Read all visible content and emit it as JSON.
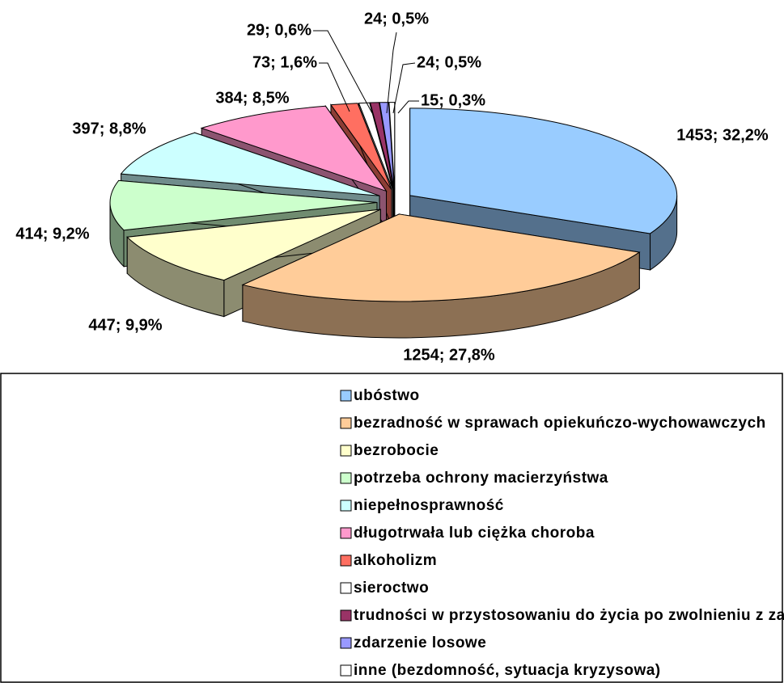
{
  "chart_data": {
    "type": "pie",
    "categories": [
      "ubóstwo",
      "bezradność w sprawach opiekuńczo-wychowawczych",
      "bezrobocie",
      "potrzeba ochrony macierzyństwa",
      "niepełnosprawność",
      "długotrwała lub ciężka choroba",
      "alkoholizm",
      "sieroctwo",
      "trudności w przystosowaniu do życia po zwolnieniu z zakładu karnego",
      "zdarzenie losowe",
      "inne (bezdomność, sytuacja kryzysowa)"
    ],
    "values": [
      1453,
      1254,
      447,
      414,
      397,
      384,
      73,
      29,
      24,
      24,
      15
    ],
    "value_labels": [
      "1453; 32,2%",
      "1254; 27,8%",
      "447; 9,9%",
      "414; 9,2%",
      "397; 8,8%",
      "384; 8,5%",
      "73; 1,6%",
      "29; 0,6%",
      "24; 0,5%",
      "24; 0,5%",
      "15; 0,3%"
    ],
    "colors": [
      "#99ccff",
      "#ffcc99",
      "#ffffcc",
      "#ccffcc",
      "#ccffff",
      "#ff99cc",
      "#ff6f61",
      "#ffffff",
      "#993366",
      "#9999ff",
      "#ffffff"
    ],
    "legend": "bottom"
  }
}
